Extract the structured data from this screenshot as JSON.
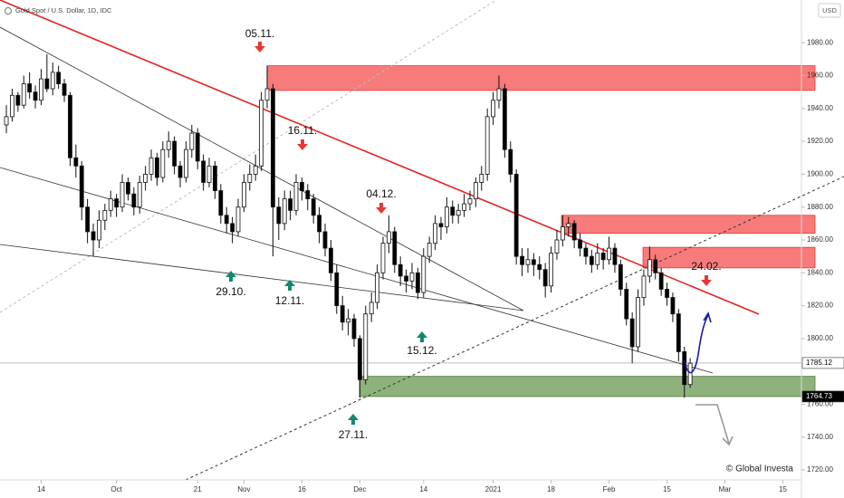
{
  "chart_data": {
    "type": "candlestick",
    "title": "Gold Spot / U.S. Dollar, 1D, IDC",
    "currency": "USD",
    "watermark": "© Global Investa",
    "up_color": "#ffffff",
    "down_color": "#000000",
    "xlim": [
      -1.1,
      137.2
    ],
    "ylim": [
      1714,
      2006
    ],
    "xticks": [
      {
        "value": 6,
        "label": "14"
      },
      {
        "value": 19,
        "label": "Oct"
      },
      {
        "value": 33,
        "label": "21"
      },
      {
        "value": 41,
        "label": "Nov"
      },
      {
        "value": 51,
        "label": "16"
      },
      {
        "value": 61,
        "label": "Dec"
      },
      {
        "value": 72,
        "label": "14"
      },
      {
        "value": 84,
        "label": "2021"
      },
      {
        "value": 94,
        "label": "18"
      },
      {
        "value": 104,
        "label": "Feb"
      },
      {
        "value": 114,
        "label": "15"
      },
      {
        "value": 124,
        "label": "Mar"
      },
      {
        "value": 134,
        "label": "15"
      }
    ],
    "yticks": [
      {
        "value": 1980,
        "label": "1980.00"
      },
      {
        "value": 1960,
        "label": "1960.00"
      },
      {
        "value": 1940,
        "label": "1940.00"
      },
      {
        "value": 1920,
        "label": "1920.00"
      },
      {
        "value": 1900,
        "label": "1900.00"
      },
      {
        "value": 1880,
        "label": "1880.00"
      },
      {
        "value": 1860,
        "label": "1860.00"
      },
      {
        "value": 1840,
        "label": "1840.00"
      },
      {
        "value": 1820,
        "label": "1820.00"
      },
      {
        "value": 1800,
        "label": "1800.00"
      },
      {
        "value": 1760,
        "label": "1760.00"
      },
      {
        "value": 1740,
        "label": "1740.00"
      },
      {
        "value": 1720,
        "label": "1720.00"
      }
    ],
    "price_labels": [
      1785.12,
      1764.73
    ],
    "resistance_zones": [
      [
        1951,
        1966
      ],
      [
        1864,
        1875
      ],
      [
        1843,
        1855.5
      ]
    ],
    "support_zones": [
      [
        1764.73,
        1777
      ]
    ],
    "annotations": [
      {
        "text": "05.11.",
        "direction": "down"
      },
      {
        "text": "16.11.",
        "direction": "down"
      },
      {
        "text": "04.12.",
        "direction": "down"
      },
      {
        "text": "24.02.",
        "direction": "down"
      },
      {
        "text": "29.10.",
        "direction": "up"
      },
      {
        "text": "12.11.",
        "direction": "up"
      },
      {
        "text": "15.12.",
        "direction": "up"
      },
      {
        "text": "27.11.",
        "direction": "up"
      }
    ],
    "ohlc": [
      [
        1930,
        1942,
        1925,
        1935
      ],
      [
        1935,
        1952,
        1932,
        1948
      ],
      [
        1948,
        1950,
        1938,
        1942
      ],
      [
        1942,
        1960,
        1940,
        1955
      ],
      [
        1955,
        1962,
        1946,
        1950
      ],
      [
        1950,
        1954,
        1940,
        1945
      ],
      [
        1945,
        1964,
        1942,
        1958
      ],
      [
        1958,
        1973,
        1950,
        1952
      ],
      [
        1952,
        1968,
        1948,
        1962
      ],
      [
        1962,
        1966,
        1952,
        1955
      ],
      [
        1955,
        1958,
        1944,
        1948
      ],
      [
        1948,
        1950,
        1905,
        1910
      ],
      [
        1910,
        1918,
        1898,
        1905
      ],
      [
        1905,
        1908,
        1872,
        1880
      ],
      [
        1880,
        1885,
        1858,
        1865
      ],
      [
        1865,
        1870,
        1850,
        1860
      ],
      [
        1860,
        1878,
        1855,
        1872
      ],
      [
        1872,
        1882,
        1866,
        1878
      ],
      [
        1878,
        1890,
        1874,
        1885
      ],
      [
        1885,
        1888,
        1874,
        1880
      ],
      [
        1880,
        1900,
        1877,
        1895
      ],
      [
        1895,
        1898,
        1884,
        1888
      ],
      [
        1888,
        1892,
        1875,
        1880
      ],
      [
        1880,
        1899,
        1876,
        1895
      ],
      [
        1895,
        1905,
        1890,
        1900
      ],
      [
        1900,
        1915,
        1896,
        1910
      ],
      [
        1910,
        1913,
        1893,
        1898
      ],
      [
        1898,
        1920,
        1895,
        1915
      ],
      [
        1915,
        1926,
        1910,
        1920
      ],
      [
        1920,
        1923,
        1900,
        1905
      ],
      [
        1905,
        1908,
        1892,
        1898
      ],
      [
        1898,
        1920,
        1895,
        1915
      ],
      [
        1915,
        1930,
        1910,
        1925
      ],
      [
        1925,
        1928,
        1903,
        1908
      ],
      [
        1908,
        1912,
        1890,
        1895
      ],
      [
        1895,
        1910,
        1892,
        1905
      ],
      [
        1905,
        1908,
        1885,
        1890
      ],
      [
        1890,
        1894,
        1870,
        1875
      ],
      [
        1875,
        1880,
        1864,
        1870
      ],
      [
        1870,
        1874,
        1858,
        1865
      ],
      [
        1865,
        1885,
        1862,
        1880
      ],
      [
        1880,
        1900,
        1877,
        1895
      ],
      [
        1895,
        1906,
        1890,
        1900
      ],
      [
        1900,
        1912,
        1896,
        1905
      ],
      [
        1905,
        1950,
        1902,
        1945
      ],
      [
        1945,
        1966,
        1940,
        1952
      ],
      [
        1952,
        1955,
        1850,
        1880
      ],
      [
        1880,
        1886,
        1860,
        1870
      ],
      [
        1870,
        1890,
        1866,
        1885
      ],
      [
        1885,
        1890,
        1872,
        1878
      ],
      [
        1878,
        1900,
        1875,
        1895
      ],
      [
        1895,
        1898,
        1884,
        1890
      ],
      [
        1890,
        1894,
        1878,
        1885
      ],
      [
        1885,
        1888,
        1870,
        1875
      ],
      [
        1875,
        1880,
        1858,
        1865
      ],
      [
        1865,
        1870,
        1850,
        1855
      ],
      [
        1855,
        1860,
        1835,
        1840
      ],
      [
        1840,
        1845,
        1815,
        1820
      ],
      [
        1820,
        1826,
        1805,
        1810
      ],
      [
        1810,
        1818,
        1802,
        1812
      ],
      [
        1812,
        1815,
        1795,
        1800
      ],
      [
        1800,
        1802,
        1764,
        1775
      ],
      [
        1775,
        1820,
        1772,
        1815
      ],
      [
        1815,
        1828,
        1810,
        1822
      ],
      [
        1822,
        1845,
        1818,
        1840
      ],
      [
        1840,
        1862,
        1836,
        1858
      ],
      [
        1858,
        1875,
        1852,
        1865
      ],
      [
        1865,
        1868,
        1840,
        1845
      ],
      [
        1845,
        1850,
        1832,
        1838
      ],
      [
        1838,
        1842,
        1828,
        1835
      ],
      [
        1835,
        1846,
        1830,
        1840
      ],
      [
        1840,
        1843,
        1824,
        1828
      ],
      [
        1828,
        1855,
        1825,
        1850
      ],
      [
        1850,
        1862,
        1846,
        1858
      ],
      [
        1858,
        1875,
        1854,
        1870
      ],
      [
        1870,
        1874,
        1860,
        1868
      ],
      [
        1868,
        1886,
        1864,
        1880
      ],
      [
        1880,
        1884,
        1870,
        1875
      ],
      [
        1875,
        1882,
        1870,
        1878
      ],
      [
        1878,
        1888,
        1874,
        1882
      ],
      [
        1882,
        1890,
        1878,
        1885
      ],
      [
        1885,
        1898,
        1880,
        1895
      ],
      [
        1895,
        1905,
        1890,
        1900
      ],
      [
        1900,
        1940,
        1896,
        1935
      ],
      [
        1935,
        1950,
        1930,
        1945
      ],
      [
        1945,
        1960,
        1940,
        1952
      ],
      [
        1952,
        1955,
        1910,
        1915
      ],
      [
        1915,
        1920,
        1895,
        1900
      ],
      [
        1900,
        1903,
        1845,
        1850
      ],
      [
        1850,
        1855,
        1838,
        1845
      ],
      [
        1845,
        1855,
        1840,
        1848
      ],
      [
        1848,
        1852,
        1838,
        1845
      ],
      [
        1845,
        1850,
        1836,
        1842
      ],
      [
        1842,
        1846,
        1825,
        1832
      ],
      [
        1832,
        1856,
        1828,
        1852
      ],
      [
        1852,
        1866,
        1848,
        1860
      ],
      [
        1860,
        1875,
        1856,
        1868
      ],
      [
        1868,
        1874,
        1862,
        1870
      ],
      [
        1870,
        1872,
        1855,
        1860
      ],
      [
        1860,
        1864,
        1850,
        1855
      ],
      [
        1855,
        1858,
        1845,
        1850
      ],
      [
        1850,
        1854,
        1840,
        1845
      ],
      [
        1845,
        1858,
        1842,
        1852
      ],
      [
        1852,
        1855,
        1842,
        1848
      ],
      [
        1848,
        1862,
        1845,
        1855
      ],
      [
        1855,
        1858,
        1840,
        1845
      ],
      [
        1845,
        1848,
        1826,
        1830
      ],
      [
        1830,
        1834,
        1808,
        1812
      ],
      [
        1812,
        1816,
        1785,
        1795
      ],
      [
        1795,
        1830,
        1792,
        1825
      ],
      [
        1825,
        1842,
        1820,
        1838
      ],
      [
        1838,
        1856,
        1834,
        1848
      ],
      [
        1848,
        1851,
        1836,
        1840
      ],
      [
        1840,
        1843,
        1826,
        1830
      ],
      [
        1830,
        1834,
        1820,
        1825
      ],
      [
        1825,
        1828,
        1810,
        1815
      ],
      [
        1815,
        1818,
        1786,
        1792
      ],
      [
        1792,
        1795,
        1764,
        1772
      ],
      [
        1772,
        1788,
        1770,
        1785
      ]
    ]
  }
}
